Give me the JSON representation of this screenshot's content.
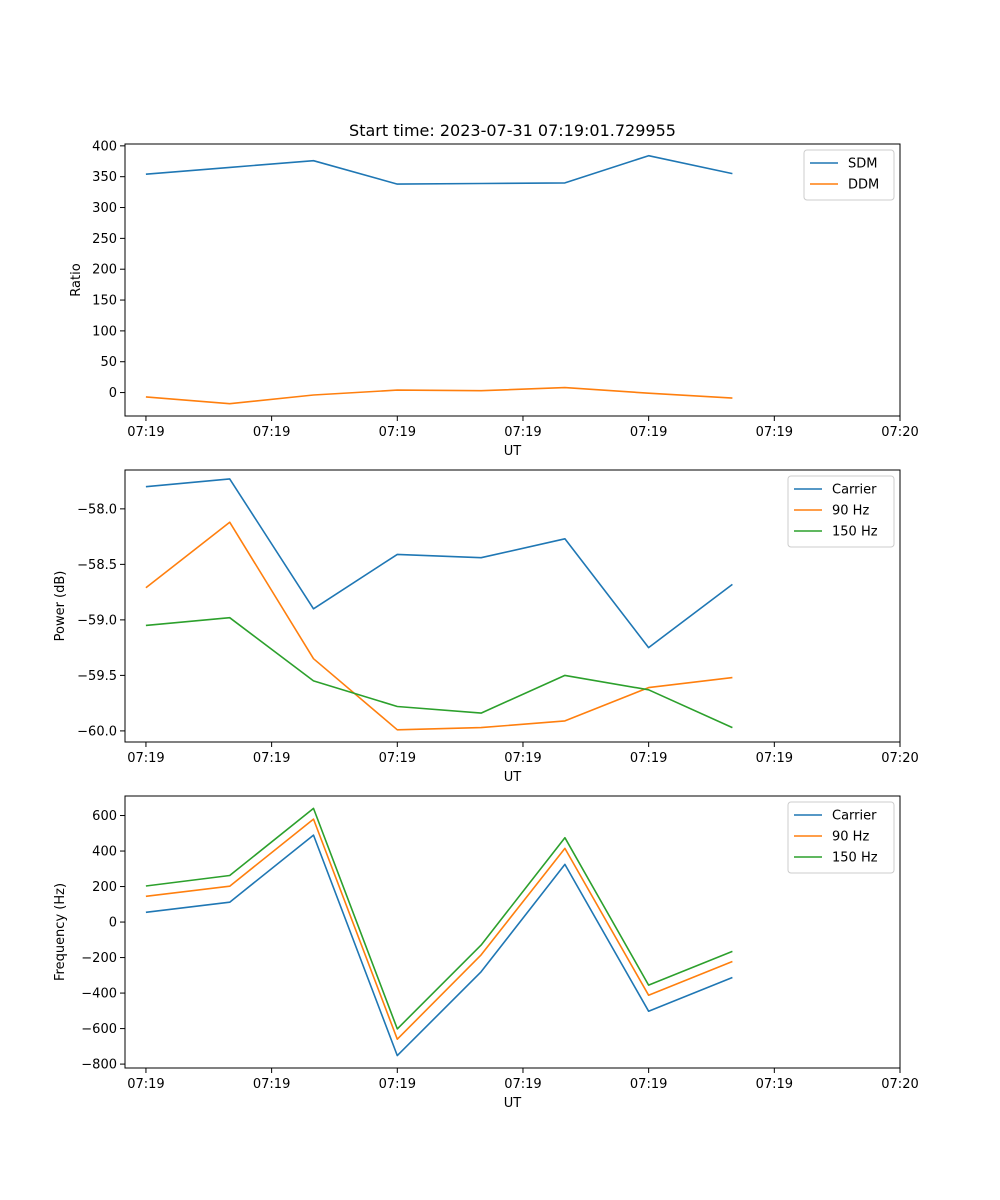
{
  "chart_data": [
    {
      "type": "line",
      "title": "Start time: 2023-07-31 07:19:01.729955",
      "xlabel": "UT",
      "ylabel": "Ratio",
      "xtick_labels": [
        "07:19",
        "07:19",
        "07:19",
        "07:19",
        "07:19",
        "07:19",
        "07:20"
      ],
      "xlim": [
        -0.25,
        9.0
      ],
      "ylim": [
        -38,
        403
      ],
      "yticks": [
        0,
        50,
        100,
        150,
        200,
        250,
        300,
        350,
        400
      ],
      "ytick_labels": [
        "0",
        "50",
        "100",
        "150",
        "200",
        "250",
        "300",
        "350",
        "400"
      ],
      "legend_position": "upper-right",
      "x": [
        0,
        1,
        2,
        3,
        4,
        5,
        6,
        7
      ],
      "series": [
        {
          "name": "SDM",
          "color": "#1f77b4",
          "values": [
            354,
            365,
            376,
            338,
            339,
            340,
            384,
            355
          ]
        },
        {
          "name": "DDM",
          "color": "#ff7f0e",
          "values": [
            -7,
            -18,
            -4,
            4,
            3,
            8,
            -1,
            -9
          ]
        }
      ]
    },
    {
      "type": "line",
      "title": "",
      "xlabel": "UT",
      "ylabel": "Power (dB)",
      "xtick_labels": [
        "07:19",
        "07:19",
        "07:19",
        "07:19",
        "07:19",
        "07:19",
        "07:20"
      ],
      "xlim": [
        -0.25,
        9.0
      ],
      "ylim": [
        -60.1,
        -57.65
      ],
      "yticks": [
        -60.0,
        -59.5,
        -59.0,
        -58.5,
        -58.0
      ],
      "ytick_labels": [
        "−60.0",
        "−59.5",
        "−59.0",
        "−58.5",
        "−58.0"
      ],
      "legend_position": "upper-right",
      "x": [
        0,
        1,
        2,
        3,
        4,
        5,
        6,
        7
      ],
      "series": [
        {
          "name": "Carrier",
          "color": "#1f77b4",
          "values": [
            -57.8,
            -57.73,
            -58.9,
            -58.41,
            -58.44,
            -58.27,
            -59.25,
            -58.68
          ]
        },
        {
          "name": "90 Hz",
          "color": "#ff7f0e",
          "values": [
            -58.71,
            -58.12,
            -59.35,
            -59.99,
            -59.97,
            -59.91,
            -59.61,
            -59.52
          ]
        },
        {
          "name": "150 Hz",
          "color": "#2ca02c",
          "values": [
            -59.05,
            -58.98,
            -59.55,
            -59.78,
            -59.84,
            -59.5,
            -59.63,
            -59.97
          ]
        }
      ]
    },
    {
      "type": "line",
      "title": "",
      "xlabel": "UT",
      "ylabel": "Frequency (Hz)",
      "xtick_labels": [
        "07:19",
        "07:19",
        "07:19",
        "07:19",
        "07:19",
        "07:19",
        "07:20"
      ],
      "xlim": [
        -0.25,
        9.0
      ],
      "ylim": [
        -822,
        710
      ],
      "yticks": [
        -800,
        -600,
        -400,
        -200,
        0,
        200,
        400,
        600
      ],
      "ytick_labels": [
        "−800",
        "−600",
        "−400",
        "−200",
        "0",
        "200",
        "400",
        "600"
      ],
      "legend_position": "upper-right",
      "x": [
        0,
        1,
        2,
        3,
        4,
        5,
        6,
        7
      ],
      "series": [
        {
          "name": "Carrier",
          "color": "#1f77b4",
          "values": [
            55,
            112,
            490,
            -752,
            -280,
            325,
            -502,
            -312
          ]
        },
        {
          "name": "90 Hz",
          "color": "#ff7f0e",
          "values": [
            145,
            202,
            580,
            -660,
            -185,
            415,
            -412,
            -222
          ]
        },
        {
          "name": "150 Hz",
          "color": "#2ca02c",
          "values": [
            203,
            262,
            640,
            -602,
            -130,
            475,
            -355,
            -165
          ]
        }
      ]
    }
  ]
}
